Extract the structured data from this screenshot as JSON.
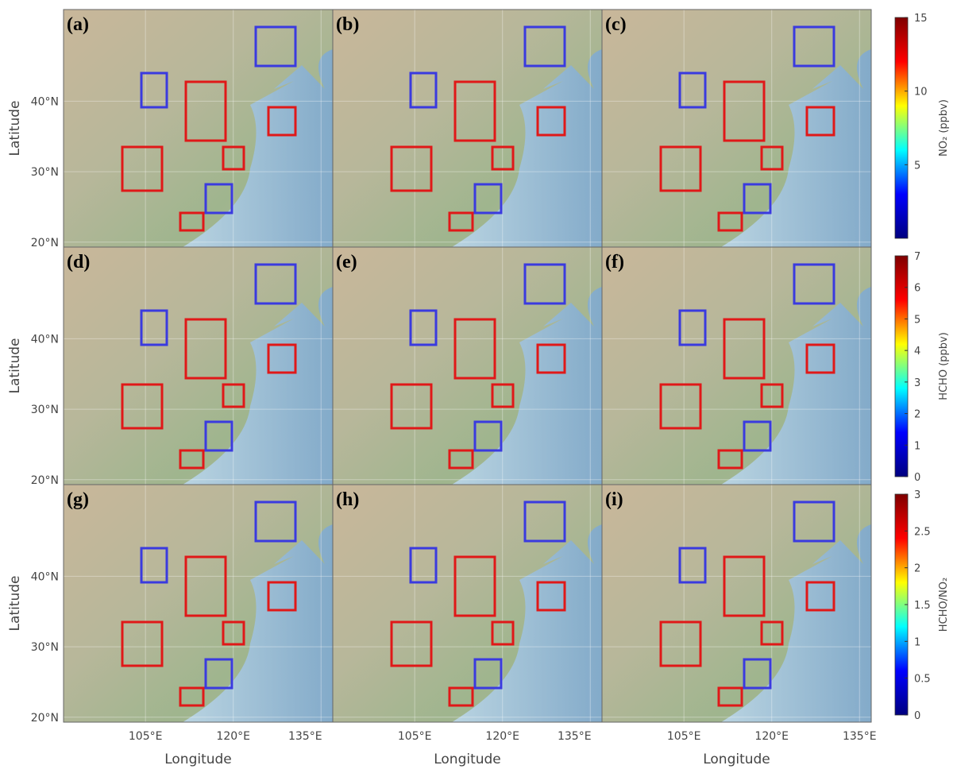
{
  "panels": [
    {
      "label": "(a)"
    },
    {
      "label": "(b)"
    },
    {
      "label": "(c)"
    },
    {
      "label": "(d)"
    },
    {
      "label": "(e)"
    },
    {
      "label": "(f)"
    },
    {
      "label": "(g)"
    },
    {
      "label": "(h)"
    },
    {
      "label": "(i)"
    }
  ],
  "x_axis": {
    "label": "Longitude",
    "lim": [
      91,
      137
    ],
    "ticks": [
      {
        "value": 105,
        "label": "105°E"
      },
      {
        "value": 120,
        "label": "120°E"
      },
      {
        "value": 135,
        "label": "135°E"
      }
    ]
  },
  "y_axis": {
    "label": "Latitude",
    "lim": [
      19.3,
      53
    ],
    "ticks": [
      {
        "value": 20,
        "label": "20°N"
      },
      {
        "value": 30,
        "label": "30°N"
      },
      {
        "value": 40,
        "label": "40°N"
      }
    ]
  },
  "colorbars": [
    {
      "label": "NO₂ (ppbv)",
      "lim": [
        0,
        15
      ],
      "ticks": [
        5,
        10,
        15
      ],
      "colors": [
        "#00007f",
        "#0000ff",
        "#00ffff",
        "#ffff00",
        "#ff0000",
        "#7f0000"
      ]
    },
    {
      "label": "HCHO (ppbv)",
      "lim": [
        0,
        7
      ],
      "ticks": [
        0,
        1,
        2,
        3,
        4,
        5,
        6,
        7
      ],
      "colors": [
        "#00007f",
        "#0000ff",
        "#00ffff",
        "#ffff00",
        "#ff0000",
        "#7f0000"
      ]
    },
    {
      "label": "HCHO/NO₂",
      "lim": [
        0,
        3
      ],
      "ticks": [
        0,
        0.5,
        1,
        1.5,
        2,
        2.5,
        3
      ],
      "colors": [
        "#00007f",
        "#0000ff",
        "#00ffff",
        "#ffff00",
        "#ff0000",
        "#7f0000"
      ]
    }
  ]
}
